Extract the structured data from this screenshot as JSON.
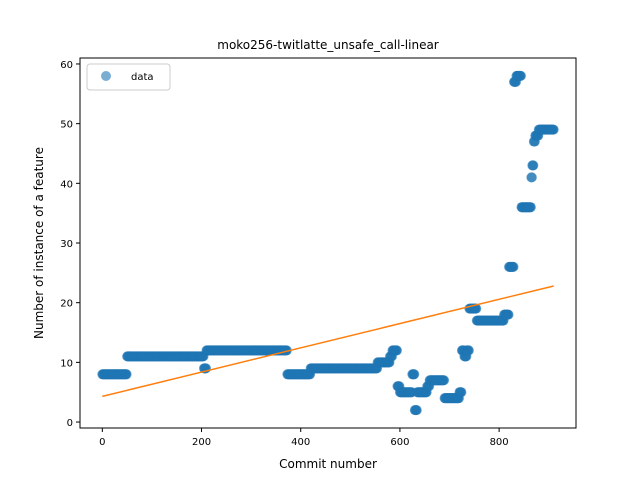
{
  "chart_data": {
    "type": "scatter",
    "title": "moko256-twitlatte_unsafe_call-linear",
    "xlabel": "Commit number",
    "ylabel": "Number of instance of a feature",
    "xlim": [
      -45,
      955
    ],
    "ylim": [
      -1,
      61
    ],
    "xticks": [
      0,
      200,
      400,
      600,
      800
    ],
    "yticks": [
      0,
      10,
      20,
      30,
      40,
      50,
      60
    ],
    "grid": false,
    "legend": {
      "placement": "upper-left",
      "entries": [
        "data"
      ]
    },
    "colors": {
      "scatter": "#1f77b4",
      "fit": "#ff7f0e"
    },
    "scatter_segments": [
      {
        "x_start": 0,
        "x_end": 49,
        "y": 8
      },
      {
        "x_start": 50,
        "x_end": 204,
        "y": 11
      },
      {
        "x_start": 205,
        "x_end": 209,
        "y": 9
      },
      {
        "x_start": 210,
        "x_end": 372,
        "y": 12
      },
      {
        "x_start": 373,
        "x_end": 419,
        "y": 8
      },
      {
        "x_start": 420,
        "x_end": 554,
        "y": 9
      },
      {
        "x_start": 555,
        "x_end": 579,
        "y": 10
      },
      {
        "x_start": 580,
        "x_end": 584,
        "y": 11
      },
      {
        "x_start": 585,
        "x_end": 594,
        "y": 12
      },
      {
        "x_start": 595,
        "x_end": 599,
        "y": 6
      },
      {
        "x_start": 600,
        "x_end": 624,
        "y": 5
      },
      {
        "x_start": 625,
        "x_end": 629,
        "y": 8
      },
      {
        "x_start": 630,
        "x_end": 634,
        "y": 2
      },
      {
        "x_start": 635,
        "x_end": 654,
        "y": 5
      },
      {
        "x_start": 655,
        "x_end": 659,
        "y": 6
      },
      {
        "x_start": 660,
        "x_end": 689,
        "y": 7
      },
      {
        "x_start": 690,
        "x_end": 719,
        "y": 4
      },
      {
        "x_start": 720,
        "x_end": 724,
        "y": 5
      },
      {
        "x_start": 725,
        "x_end": 729,
        "y": 12
      },
      {
        "x_start": 730,
        "x_end": 734,
        "y": 11
      },
      {
        "x_start": 735,
        "x_end": 739,
        "y": 12
      },
      {
        "x_start": 740,
        "x_end": 754,
        "y": 19
      },
      {
        "x_start": 755,
        "x_end": 809,
        "y": 17
      },
      {
        "x_start": 810,
        "x_end": 819,
        "y": 18
      },
      {
        "x_start": 820,
        "x_end": 829,
        "y": 26
      },
      {
        "x_start": 830,
        "x_end": 834,
        "y": 57
      },
      {
        "x_start": 835,
        "x_end": 844,
        "y": 58
      },
      {
        "x_start": 845,
        "x_end": 864,
        "y": 36
      },
      {
        "x_start": 865,
        "x_end": 866,
        "y": 41
      },
      {
        "x_start": 867,
        "x_end": 869,
        "y": 43
      },
      {
        "x_start": 870,
        "x_end": 872,
        "y": 47
      },
      {
        "x_start": 873,
        "x_end": 879,
        "y": 48
      },
      {
        "x_start": 880,
        "x_end": 910,
        "y": 49
      }
    ],
    "fit_line": {
      "x": [
        0,
        910
      ],
      "y": [
        4.3,
        22.8
      ]
    }
  }
}
